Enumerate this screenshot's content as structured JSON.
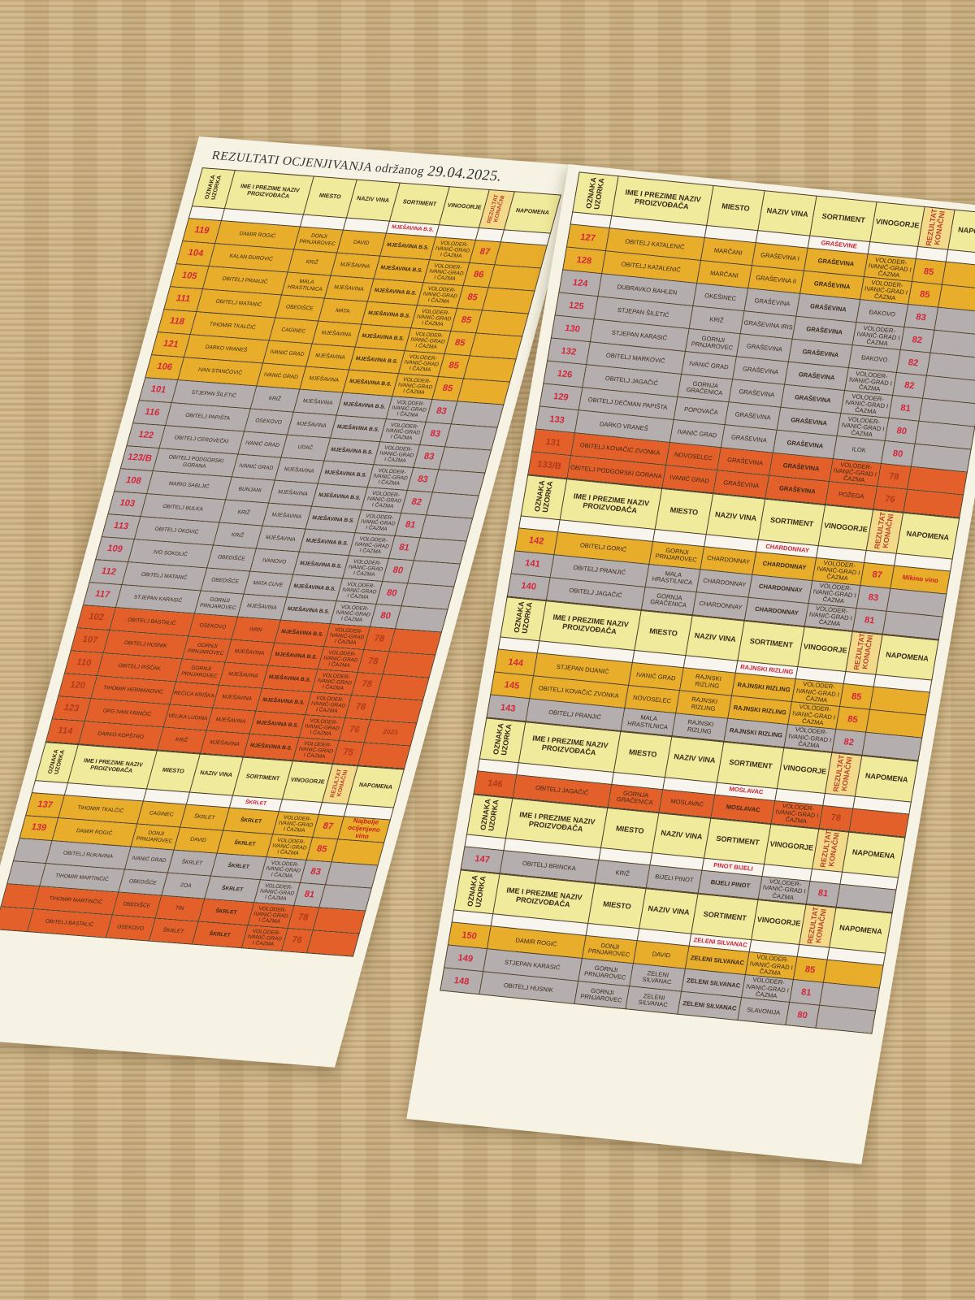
{
  "title": {
    "main": "REZULTATI OCJENJIVANJA",
    "sub": "održanog",
    "date": "29.04.2025."
  },
  "headers": [
    "OZNAKA UZORKA",
    "IME I PREZIME NAZIV PROIZVOĐAČA",
    "MIESTO",
    "NAZIV VINA",
    "SORTIMENT",
    "VINOGORJE",
    "REZULTAT KONAČNI",
    "NAPOMENA"
  ],
  "tier_colors": {
    "gold": "#e8ad2b",
    "gray": "#b5aeaf",
    "red": "#e4602a",
    "header": "#f0ea9c"
  },
  "left_sections": [
    {
      "sortiment": "MJEŠAVINA B.S.",
      "rows": [
        {
          "id": "119",
          "name": "DAMIR ROGIĆ",
          "place": "DONJI PRNJAROVEC",
          "wine": "DAVID",
          "sort": "MJEŠAVINA B.S.",
          "region": "VOLODER-IVANIĆ-GRAD I ČAZMA",
          "score": "87",
          "note": "",
          "tier": "gold"
        },
        {
          "id": "104",
          "name": "KALAN ĐUROVIĆ",
          "place": "KRIŽ",
          "wine": "MJEŠAVINA",
          "sort": "MJEŠAVINA B.S.",
          "region": "VOLODER-IVANIĆ-GRAD I ČAZMA",
          "score": "86",
          "note": "",
          "tier": "gold"
        },
        {
          "id": "105",
          "name": "OBITELJ PRANJIĆ",
          "place": "MALA HRASTILNICA",
          "wine": "MJEŠAVINA",
          "sort": "MJEŠAVINA B.S.",
          "region": "VOLODER-IVANIĆ-GRAD I ČAZMA",
          "score": "85",
          "note": "",
          "tier": "gold"
        },
        {
          "id": "111",
          "name": "OBITELJ MATANIĆ",
          "place": "OBEDIŠĆE",
          "wine": "MATA",
          "sort": "MJEŠAVINA B.S.",
          "region": "VOLODER-IVANIĆ-GRAD I ČAZMA",
          "score": "85",
          "note": "",
          "tier": "gold"
        },
        {
          "id": "118",
          "name": "TIHOMIR TKALČIĆ",
          "place": "CAGINEC",
          "wine": "MJEŠAVINA",
          "sort": "MJEŠAVINA B.S.",
          "region": "VOLODER-IVANIĆ-GRAD I ČAZMA",
          "score": "85",
          "note": "",
          "tier": "gold"
        },
        {
          "id": "121",
          "name": "DARKO VRANEŠ",
          "place": "IVANIĆ GRAD",
          "wine": "MJEŠAVINA",
          "sort": "MJEŠAVINA B.S.",
          "region": "VOLODER-IVANIĆ-GRAD I ČAZMA",
          "score": "85",
          "note": "",
          "tier": "gold"
        },
        {
          "id": "106",
          "name": "IVAN STANČOVIĆ",
          "place": "IVANIĆ GRAD",
          "wine": "MJEŠAVINA",
          "sort": "MJEŠAVINA B.S.",
          "region": "VOLODER-IVANIĆ-GRAD I ČAZMA",
          "score": "85",
          "note": "",
          "tier": "gold"
        },
        {
          "id": "101",
          "name": "STJEPAN ŠILETIĆ",
          "place": "KRIŽ",
          "wine": "MJEŠAVINA",
          "sort": "MJEŠAVINA B.S.",
          "region": "VOLODER-IVANIĆ-GRAD I ČAZMA",
          "score": "83",
          "note": "",
          "tier": "gray"
        },
        {
          "id": "116",
          "name": "OBITELJ PAPIŠTA",
          "place": "OSEKOVO",
          "wine": "MJEŠAVINA",
          "sort": "MJEŠAVINA B.S.",
          "region": "VOLODER-IVANIĆ-GRAD I ČAZMA",
          "score": "83",
          "note": "",
          "tier": "gray"
        },
        {
          "id": "122",
          "name": "OBITELJ CEROVEČKI",
          "place": "IVANIĆ GRAD",
          "wine": "UDAČ",
          "sort": "MJEŠAVINA B.S.",
          "region": "VOLODER-IVANIĆ-GRAD I ČAZMA",
          "score": "83",
          "note": "",
          "tier": "gray"
        },
        {
          "id": "123/B",
          "name": "OBITELJ PODGORSKI GORANA",
          "place": "IVANIĆ GRAD",
          "wine": "MJEŠAVINA",
          "sort": "MJEŠAVINA B.S.",
          "region": "VOLODER-IVANIĆ-GRAD I ČAZMA",
          "score": "83",
          "note": "",
          "tier": "gray"
        },
        {
          "id": "108",
          "name": "MARIO SABLJIĆ",
          "place": "BUNJANI",
          "wine": "MJEŠAVINA",
          "sort": "MJEŠAVINA B.S.",
          "region": "VOLODER-IVANIĆ-GRAD I ČAZMA",
          "score": "82",
          "note": "",
          "tier": "gray"
        },
        {
          "id": "103",
          "name": "OBITELJ BULKA",
          "place": "KRIŽ",
          "wine": "MJEŠAVINA",
          "sort": "MJEŠAVINA B.S.",
          "region": "VOLODER-IVANIĆ-GRAD I ČAZMA",
          "score": "81",
          "note": "",
          "tier": "gray"
        },
        {
          "id": "113",
          "name": "OBITELJ OKOVIĆ",
          "place": "KRIŽ",
          "wine": "MJEŠAVINA",
          "sort": "MJEŠAVINA B.S.",
          "region": "VOLODER-IVANIĆ-GRAD I ČAZMA",
          "score": "81",
          "note": "",
          "tier": "gray"
        },
        {
          "id": "109",
          "name": "IVO SOKOLIĆ",
          "place": "OBEDIŠĆE",
          "wine": "IVANOVO",
          "sort": "MJEŠAVINA B.S.",
          "region": "VOLODER-IVANIĆ-GRAD I ČAZMA",
          "score": "80",
          "note": "",
          "tier": "gray"
        },
        {
          "id": "112",
          "name": "OBITELJ MATANIĆ",
          "place": "OBEDIŠĆE",
          "wine": "MATA CUVE",
          "sort": "MJEŠAVINA B.S.",
          "region": "VOLODER-IVANIĆ-GRAD I ČAZMA",
          "score": "80",
          "note": "",
          "tier": "gray"
        },
        {
          "id": "117",
          "name": "STJEPAN KARASIĆ",
          "place": "GORNJI PRNJAROVEC",
          "wine": "MJEŠAVINA",
          "sort": "MJEŠAVINA B.S.",
          "region": "VOLODER-IVANIĆ-GRAD I ČAZMA",
          "score": "80",
          "note": "",
          "tier": "gray"
        },
        {
          "id": "102",
          "name": "OBITELJ BASTALIĆ",
          "place": "OSEKOVO",
          "wine": "IVAN",
          "sort": "MJEŠAVINA B.S.",
          "region": "VOLODER-IVANIĆ-GRAD I ČAZMA",
          "score": "78",
          "note": "",
          "tier": "red"
        },
        {
          "id": "107",
          "name": "OBITELJ HUSNIK",
          "place": "GORNJI PRNJAROVEC",
          "wine": "MJEŠAVINA",
          "sort": "MJEŠAVINA B.S.",
          "region": "VOLODER-IVANIĆ-GRAD I ČAZMA",
          "score": "78",
          "note": "",
          "tier": "red"
        },
        {
          "id": "110",
          "name": "OBITELJ PIŠČAK",
          "place": "GORNJI PRNJAROVEC",
          "wine": "MJEŠAVINA",
          "sort": "MJEŠAVINA B.S.",
          "region": "VOLODER-IVANIĆ-GRAD I ČAZMA",
          "score": "78",
          "note": "",
          "tier": "red"
        },
        {
          "id": "120",
          "name": "TIHOMIR HERMANOVIĆ",
          "place": "REČICA KRIŠKA",
          "wine": "MJEŠAVINA",
          "sort": "MJEŠAVINA B.S.",
          "region": "VOLODER-IVANIĆ-GRAD I ČAZMA",
          "score": "78",
          "note": "",
          "tier": "red"
        },
        {
          "id": "123",
          "name": "OPG IVAN FRINČIĆ",
          "place": "VELIKA LUDINA",
          "wine": "MJEŠAVINA",
          "sort": "MJEŠAVINA B.S.",
          "region": "VOLODER-IVANIĆ-GRAD I ČAZMA",
          "score": "76",
          "note": "2023",
          "tier": "red"
        },
        {
          "id": "114",
          "name": "DARKO KOPŠTRO",
          "place": "KRIŽ",
          "wine": "MJEŠAVINA",
          "sort": "MJEŠAVINA B.S.",
          "region": "VOLODER-IVANIĆ-GRAD I ČAZMA",
          "score": "75",
          "note": "",
          "tier": "red"
        }
      ]
    },
    {
      "sortiment": "ŠKRLET",
      "rows": [
        {
          "id": "137",
          "name": "TIHOMIR TKALČIĆ",
          "place": "CAGINEC",
          "wine": "ŠKRLET",
          "sort": "ŠKRLET",
          "region": "VOLODER-IVANIĆ-GRAD I ČAZMA",
          "score": "87",
          "note": "Najbolje ocijenjeno vino",
          "tier": "gold"
        },
        {
          "id": "139",
          "name": "DAMIR ROGIĆ",
          "place": "DONJI PRNJAROVEC",
          "wine": "DAVID",
          "sort": "ŠKRLET",
          "region": "VOLODER-IVANIĆ-GRAD I ČAZMA",
          "score": "85",
          "note": "",
          "tier": "gold"
        },
        {
          "id": "",
          "name": "OBITELJ RUKAVINA",
          "place": "IVANIĆ GRAD",
          "wine": "ŠKRLET",
          "sort": "ŠKRLET",
          "region": "VOLODER-IVANIĆ-GRAD I ČAZMA",
          "score": "83",
          "note": "",
          "tier": "gray"
        },
        {
          "id": "",
          "name": "TIHOMIR MARTINČIĆ",
          "place": "OBEDIŠĆE",
          "wine": "ZOA",
          "sort": "ŠKRLET",
          "region": "VOLODER-IVANIĆ-GRAD I ČAZMA",
          "score": "81",
          "note": "",
          "tier": "gray"
        },
        {
          "id": "",
          "name": "TIHOMIR MARTINČIĆ",
          "place": "OBEDIŠĆE",
          "wine": "TIN",
          "sort": "ŠKRLET",
          "region": "VOLODER-IVANIĆ-GRAD I ČAZMA",
          "score": "78",
          "note": "",
          "tier": "red"
        },
        {
          "id": "",
          "name": "OBITELJ BASTALIĆ",
          "place": "OSEKOVO",
          "wine": "ŠKRLET",
          "sort": "ŠKRLET",
          "region": "VOLODER-IVANIĆ-GRAD I ČAZMA",
          "score": "76",
          "note": "",
          "tier": "red"
        }
      ]
    }
  ],
  "right_sections": [
    {
      "sortiment": "GRAŠEVINE",
      "rows": [
        {
          "id": "127",
          "name": "OBITELJ KATALENIĆ",
          "place": "MARČANI",
          "wine": "GRAŠEVINA I",
          "sort": "GRAŠEVINA",
          "region": "VOLODER-IVANIĆ-GRAD I ČAZMA",
          "score": "85",
          "note": "",
          "tier": "gold"
        },
        {
          "id": "128",
          "name": "OBITELJ KATALENIĆ",
          "place": "MARČANI",
          "wine": "GRAŠEVINA II",
          "sort": "GRAŠEVINA",
          "region": "VOLODER-IVANIĆ-GRAD I ČAZMA",
          "score": "85",
          "note": "",
          "tier": "gold"
        },
        {
          "id": "124",
          "name": "DUBRAVKO BAHLEN",
          "place": "OKEŠINEC",
          "wine": "GRAŠEVINA",
          "sort": "GRAŠEVINA",
          "region": "ĐAKOVO",
          "score": "83",
          "note": "",
          "tier": "gray"
        },
        {
          "id": "125",
          "name": "STJEPAN ŠILETIĆ",
          "place": "KRIŽ",
          "wine": "GRAŠEVINA IRIS",
          "sort": "GRAŠEVINA",
          "region": "VOLODER-IVANIĆ-GRAD I ČAZMA",
          "score": "82",
          "note": "",
          "tier": "gray"
        },
        {
          "id": "130",
          "name": "STJEPAN KARASIĆ",
          "place": "GORNJI PRNJAROVEC",
          "wine": "GRAŠEVINA",
          "sort": "GRAŠEVINA",
          "region": "ĐAKOVO",
          "score": "82",
          "note": "",
          "tier": "gray"
        },
        {
          "id": "132",
          "name": "OBITELJ MARKOVIĆ",
          "place": "IVANIĆ GRAD",
          "wine": "GRAŠEVINA",
          "sort": "GRAŠEVINA",
          "region": "VOLODER-IVANIĆ-GRAD I ČAZMA",
          "score": "82",
          "note": "",
          "tier": "gray"
        },
        {
          "id": "126",
          "name": "OBITELJ JAGAČIĆ",
          "place": "GORNJA GRAČENICA",
          "wine": "GRAŠEVINA",
          "sort": "GRAŠEVINA",
          "region": "VOLODER-IVANIĆ-GRAD I ČAZMA",
          "score": "81",
          "note": "",
          "tier": "gray"
        },
        {
          "id": "129",
          "name": "OBITELJ DEČMAN PAPIŠTA",
          "place": "POPOVAČA",
          "wine": "GRAŠEVINA",
          "sort": "GRAŠEVINA",
          "region": "VOLODER-IVANIĆ-GRAD I ČAZMA",
          "score": "80",
          "note": "",
          "tier": "gray"
        },
        {
          "id": "133",
          "name": "DARKO VRANEŠ",
          "place": "IVANIĆ GRAD",
          "wine": "GRAŠEVINA",
          "sort": "GRAŠEVINA",
          "region": "ILOK",
          "score": "80",
          "note": "",
          "tier": "gray"
        },
        {
          "id": "131",
          "name": "OBITELJ KOVAČIĆ ZVONKA",
          "place": "NOVOSELEC",
          "wine": "GRAŠEVINA",
          "sort": "GRAŠEVINA",
          "region": "VOLODER-IVANIĆ-GRAD I ČAZMA",
          "score": "78",
          "note": "",
          "tier": "red"
        },
        {
          "id": "133/B",
          "name": "OBITELJ PODGORSKI GORANA",
          "place": "IVANIĆ GRAD",
          "wine": "GRAŠEVINA",
          "sort": "GRAŠEVINA",
          "region": "POŽEGA",
          "score": "76",
          "note": "",
          "tier": "red"
        }
      ]
    },
    {
      "sortiment": "CHARDONNAY",
      "rows": [
        {
          "id": "142",
          "name": "OBITELJ GORIĆ",
          "place": "GORNJI PRNJAROVEC",
          "wine": "CHARDONNAY",
          "sort": "CHARDONNAY",
          "region": "VOLODER-IVANIĆ-GRAD I ČAZMA",
          "score": "87",
          "note": "Mikino vino",
          "tier": "gold"
        },
        {
          "id": "141",
          "name": "OBITELJ PRANJIĆ",
          "place": "MALA HRASTILNICA",
          "wine": "CHARDONNAY",
          "sort": "CHARDONNAY",
          "region": "VOLODER-IVANIĆ-GRAD I ČAZMA",
          "score": "83",
          "note": "",
          "tier": "gray"
        },
        {
          "id": "140",
          "name": "OBITELJ JAGAČIĆ",
          "place": "GORNJA GRAČENICA",
          "wine": "CHARDONNAY",
          "sort": "CHARDONNAY",
          "region": "VOLODER-IVANIĆ-GRAD I ČAZMA",
          "score": "81",
          "note": "",
          "tier": "gray"
        }
      ]
    },
    {
      "sortiment": "RAJNSKI RIZLING",
      "rows": [
        {
          "id": "144",
          "name": "STJEPAN DIJANIĆ",
          "place": "IVANIĆ GRAD",
          "wine": "RAJNSKI RIZLING",
          "sort": "RAJNSKI RIZLING",
          "region": "VOLODER-IVANIĆ-GRAD I ČAZMA",
          "score": "85",
          "note": "",
          "tier": "gold"
        },
        {
          "id": "145",
          "name": "OBITELJ KOVAČIĆ ZVONKA",
          "place": "NOVOSELEC",
          "wine": "RAJNSKI RIZLING",
          "sort": "RAJNSKI RIZLING",
          "region": "VOLODER-IVANIĆ-GRAD I ČAZMA",
          "score": "85",
          "note": "",
          "tier": "gold"
        },
        {
          "id": "143",
          "name": "OBITELJ PRANJIĆ",
          "place": "MALA HRASTILNICA",
          "wine": "RAJNSKI RIZLING",
          "sort": "RAJNSKI RIZLING",
          "region": "VOLODER-IVANIĆ-GRAD I ČAZMA",
          "score": "82",
          "note": "",
          "tier": "gray"
        }
      ]
    },
    {
      "sortiment": "MOSLAVAC",
      "rows": [
        {
          "id": "146",
          "name": "OBITELJ JAGAČIĆ",
          "place": "GORNJA GRAČENICA",
          "wine": "MOSLAVAC",
          "sort": "MOSLAVAC",
          "region": "VOLODER-IVANIĆ-GRAD I ČAZMA",
          "score": "78",
          "note": "",
          "tier": "red"
        }
      ]
    },
    {
      "sortiment": "PINOT BIJELI",
      "rows": [
        {
          "id": "147",
          "name": "OBITELJ BRINCKA",
          "place": "KRIŽ",
          "wine": "BIJELI PINOT",
          "sort": "BIJELI PINOT",
          "region": "VOLODER-IVANIĆ-GRAD I ČAZMA",
          "score": "81",
          "note": "",
          "tier": "gray"
        }
      ]
    },
    {
      "sortiment": "ZELENI SILVANAC",
      "rows": [
        {
          "id": "150",
          "name": "DAMIR ROGIĆ",
          "place": "DONJI PRNJAROVEC",
          "wine": "DAVID",
          "sort": "ZELENI SILVANAC",
          "region": "VOLODER-IVANIĆ-GRAD I ČAZMA",
          "score": "85",
          "note": "",
          "tier": "gold"
        },
        {
          "id": "149",
          "name": "STJEPAN KARASIĆ",
          "place": "GORNJI PRNJAROVEC",
          "wine": "ZELENI SILVANAC",
          "sort": "ZELENI SILVANAC",
          "region": "VOLODER-IVANIĆ-GRAD I ČAZMA",
          "score": "81",
          "note": "",
          "tier": "gray"
        },
        {
          "id": "148",
          "name": "OBITELJ HUSNIK",
          "place": "GORNJI PRNJAROVEC",
          "wine": "ZELENI SILVANAC",
          "sort": "ZELENI SILVANAC",
          "region": "SLAVONIJA",
          "score": "80",
          "note": "",
          "tier": "gray"
        }
      ]
    }
  ]
}
